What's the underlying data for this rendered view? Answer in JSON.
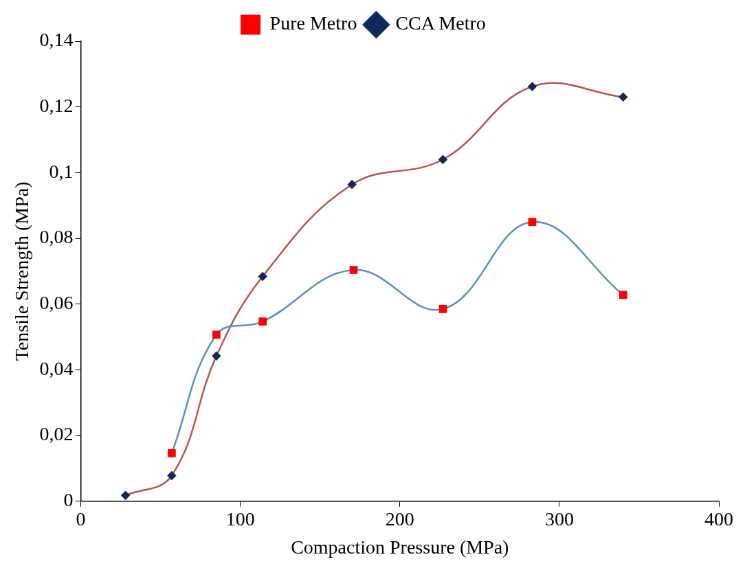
{
  "chart_data": {
    "type": "line",
    "xlabel": "Compaction Pressure (MPa)",
    "ylabel": "Tensile Strength (MPa)",
    "xlim": [
      0,
      400
    ],
    "xticks": [
      0,
      100,
      200,
      300,
      400
    ],
    "ylim": [
      0,
      0.14
    ],
    "yticks": [
      {
        "value": 0,
        "label": "0"
      },
      {
        "value": 0.02,
        "label": "0,02"
      },
      {
        "value": 0.04,
        "label": "0,04"
      },
      {
        "value": 0.06,
        "label": "0,06"
      },
      {
        "value": 0.08,
        "label": "0,08"
      },
      {
        "value": 0.1,
        "label": "0,1"
      },
      {
        "value": 0.12,
        "label": "0,12"
      },
      {
        "value": 0.14,
        "label": "0,14"
      }
    ],
    "grid": false,
    "legend": "top",
    "series": [
      {
        "name": "Pure Metro",
        "color": "#5b8fc9",
        "marker": "square",
        "colors": [
          "#ff0000",
          "#ff0000",
          "#ff0000",
          "#ff0000",
          "#ff0000",
          "#ff0000",
          "#ff0000"
        ],
        "x": [
          57,
          85,
          114,
          171,
          227,
          283,
          340
        ],
        "values": [
          0.0146,
          0.0507,
          0.0547,
          0.0704,
          0.0585,
          0.085,
          0.0628
        ]
      },
      {
        "name": "CCA Metro",
        "color": "#c0504d",
        "marker": "diamond",
        "colors": [
          "#0d2a5c",
          "#0d2a5c",
          "#0d2a5c",
          "#0d2a5c",
          "#0d2a5c",
          "#0d2a5c",
          "#0d2a5c",
          "#0d2a5c"
        ],
        "x": [
          28,
          57,
          85,
          114,
          170,
          227,
          283,
          340
        ],
        "values": [
          0.0018,
          0.0078,
          0.0442,
          0.0684,
          0.0964,
          0.104,
          0.1262,
          0.123
        ]
      }
    ]
  }
}
